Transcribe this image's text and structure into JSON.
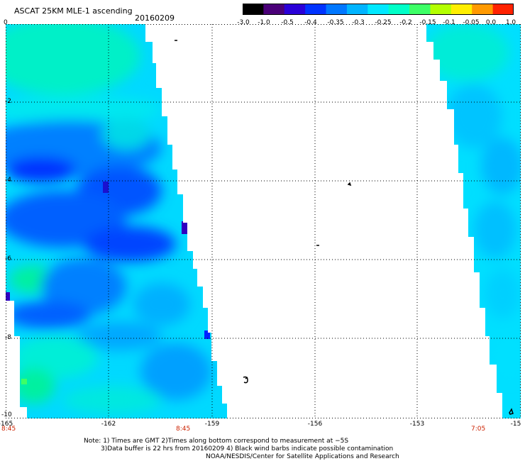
{
  "header": {
    "title": "ASCAT 25KM MLE-1 ascending",
    "date": "20160209",
    "origin_label": "0"
  },
  "colorbar": {
    "labels": [
      "-3.0",
      "-1.0",
      "-0.5",
      "-0.4",
      "-0.35",
      "-0.3",
      "-0.25",
      "-0.2",
      "-0.15",
      "-0.1",
      "-0.05",
      "0.0",
      "1.0"
    ],
    "stops": [
      "#000000",
      "#4a0078",
      "#2a00d8",
      "#0033ff",
      "#0077ff",
      "#00b4ff",
      "#00e8ff",
      "#00ffc8",
      "#3dff66",
      "#b4ff00",
      "#ffee00",
      "#ff9900",
      "#ff2200"
    ]
  },
  "axes": {
    "y_labels": [
      "-2",
      "-4",
      "-6",
      "-8",
      "-10"
    ],
    "x_labels": [
      "-165",
      "-162",
      "-159",
      "-156",
      "-153",
      "-15"
    ],
    "time_labels": [
      "8:45",
      "8:45",
      "7:05"
    ]
  },
  "notes": {
    "line1": "Note: 1) Times are GMT 2)Times along bottom correspond to measurement at −5S",
    "line2": "3)Data buffer is 22 hrs from 20160209 4) Black wind barbs indicate possible contamination",
    "line3": "NOAA/NESDIS/Center for Satellite Applications and Research"
  },
  "map_data": {
    "type": "heatmap",
    "lon_range": [
      -165,
      -150
    ],
    "lat_range": [
      -10,
      0
    ],
    "color_scale": [
      "#2a00d8",
      "#0033ff",
      "#0077ff",
      "#00b4ff",
      "#00e8ff",
      "#00ffc8",
      "#3dff66"
    ]
  }
}
